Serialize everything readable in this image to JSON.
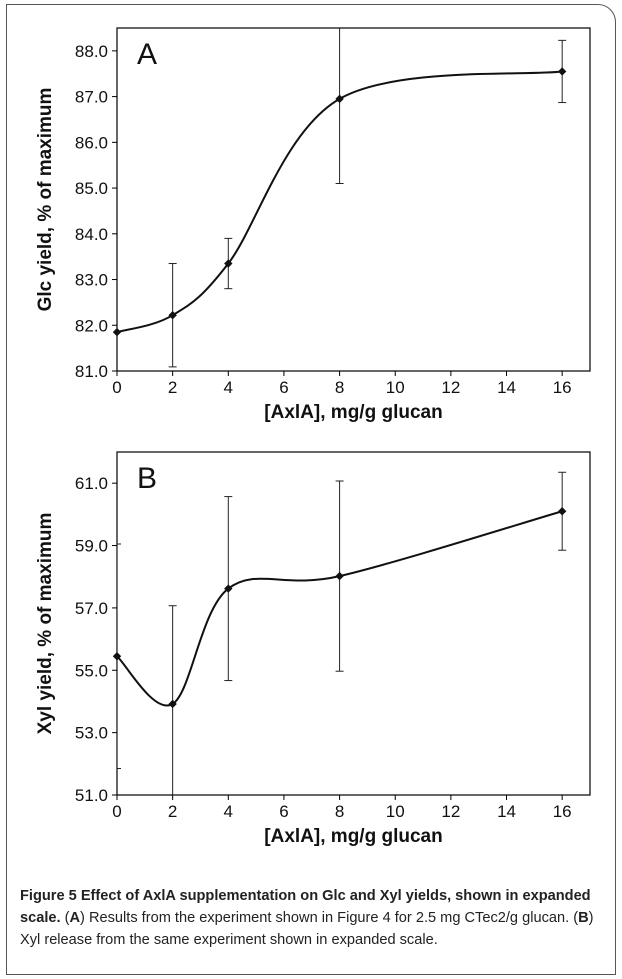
{
  "chart_data": [
    {
      "type": "line",
      "panel_label": "A",
      "xlabel": "[AxlA], mg/g glucan",
      "ylabel": "Glc yield, % of maximum",
      "x_ticks": [
        "0",
        "2",
        "4",
        "6",
        "8",
        "10",
        "12",
        "14",
        "16"
      ],
      "y_ticks": [
        "81.0",
        "82.0",
        "83.0",
        "84.0",
        "85.0",
        "86.0",
        "87.0",
        "88.0"
      ],
      "xlim": [
        0,
        17
      ],
      "ylim": [
        81.0,
        88.5
      ],
      "series": [
        {
          "x": [
            0,
            2,
            4,
            8,
            16
          ],
          "y": [
            81.85,
            82.22,
            83.35,
            86.95,
            87.55
          ],
          "error": [
            0,
            1.13,
            0.55,
            1.85,
            0.68
          ],
          "error_upper": [
            0,
            1.13,
            0.55,
            1.85,
            0.68
          ]
        }
      ]
    },
    {
      "type": "line",
      "panel_label": "B",
      "xlabel": "[AxlA], mg/g glucan",
      "ylabel": "Xyl yield, % of maximum",
      "x_ticks": [
        "0",
        "2",
        "4",
        "6",
        "8",
        "10",
        "12",
        "14",
        "16"
      ],
      "y_ticks": [
        "51.0",
        "53.0",
        "55.0",
        "57.0",
        "59.0",
        "61.0"
      ],
      "xlim": [
        0,
        17
      ],
      "ylim": [
        51.0,
        62.0
      ],
      "series": [
        {
          "x": [
            0,
            2,
            4,
            8,
            16
          ],
          "y": [
            55.45,
            53.92,
            57.62,
            58.02,
            60.1
          ],
          "error": [
            3.6,
            3.15,
            2.95,
            3.05,
            1.25
          ]
        }
      ]
    }
  ],
  "caption": {
    "title": "Figure 5 Effect of AxlA supplementation on Glc and Xyl yields, shown in expanded scale.",
    "parts": [
      {
        "text": " (",
        "bold": false
      },
      {
        "text": "A",
        "bold": true
      },
      {
        "text": ") Results from the experiment shown in Figure 4 for 2.5 mg CTec2/g glucan. (",
        "bold": false
      },
      {
        "text": "B",
        "bold": true
      },
      {
        "text": ") Xyl release from the same experiment shown in expanded scale.",
        "bold": false
      }
    ]
  }
}
